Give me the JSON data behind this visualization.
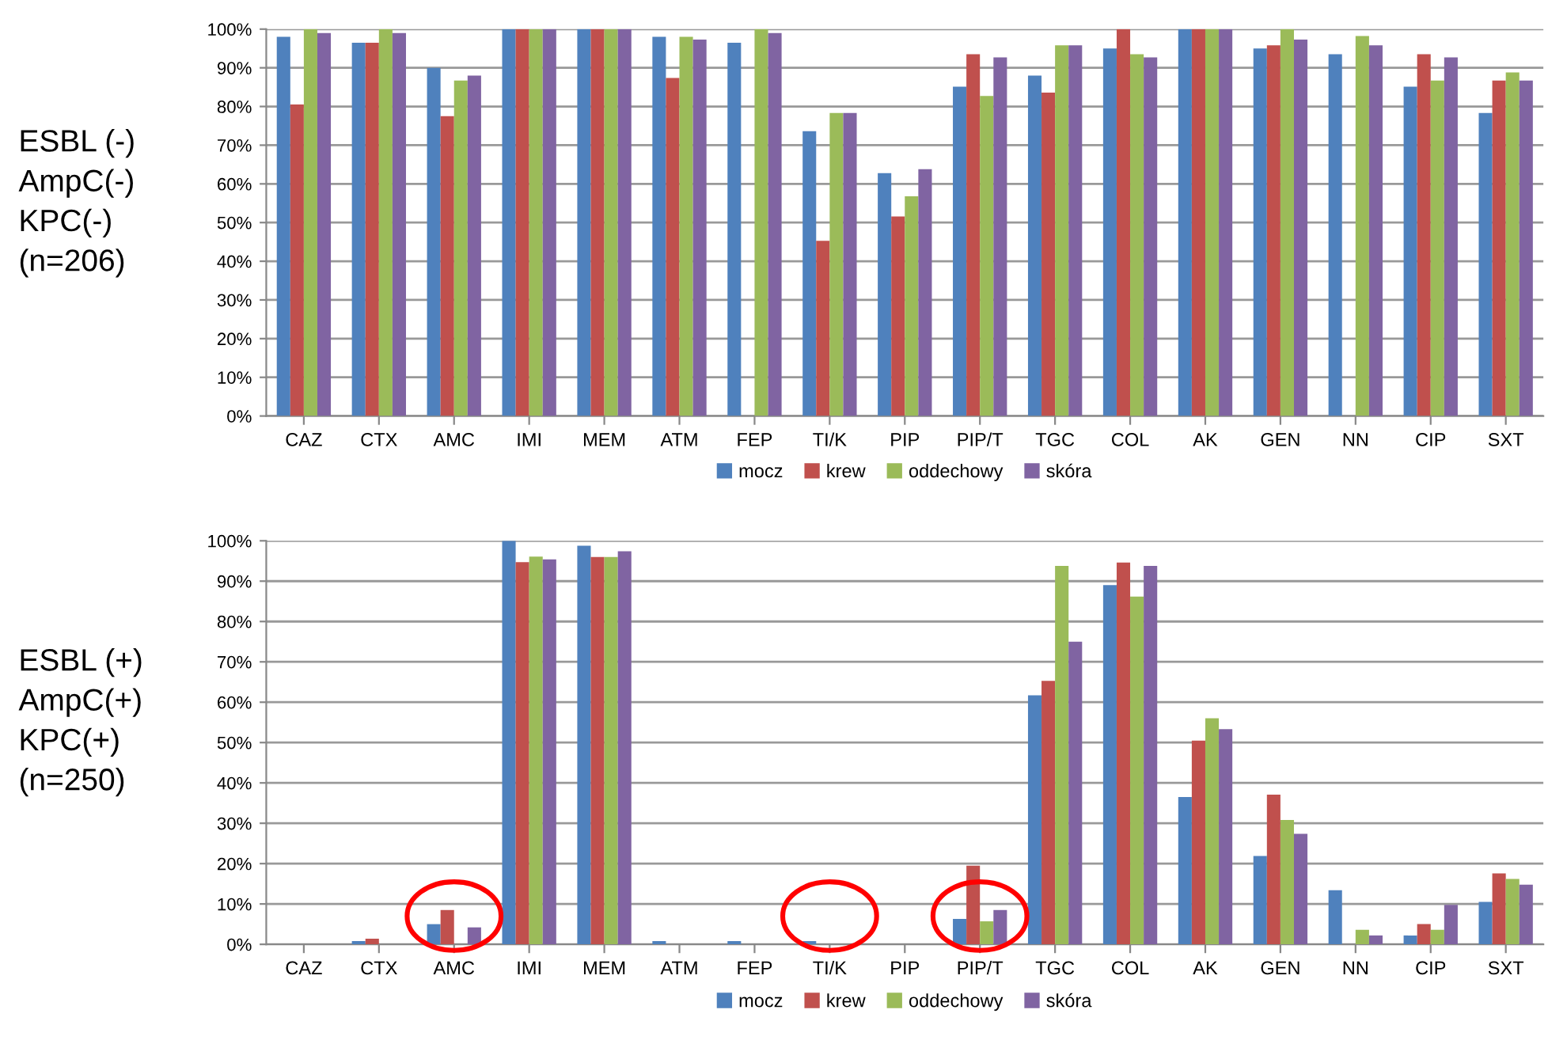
{
  "chart_data": [
    {
      "type": "bar",
      "categories": [
        "CAZ",
        "CTX",
        "AMC",
        "IMI",
        "MEM",
        "ATM",
        "FEP",
        "TI/K",
        "PIP",
        "PIP/T",
        "TGC",
        "COL",
        "AK",
        "GEN",
        "NN",
        "CIP",
        "SXT"
      ],
      "series": [
        {
          "name": "mocz",
          "color": "#4f81bd",
          "values": [
            98,
            96.5,
            90,
            100,
            100,
            98,
            96.5,
            73.6,
            62.8,
            85.1,
            88,
            95,
            100,
            95,
            93.5,
            85.1,
            78.3
          ]
        },
        {
          "name": "krew",
          "color": "#c0504d",
          "values": [
            80.5,
            96.5,
            77.5,
            100,
            100,
            87.4,
            0,
            45.3,
            51.6,
            93.5,
            83.6,
            100,
            100,
            95.8,
            0,
            93.5,
            86.7
          ]
        },
        {
          "name": "oddechowy",
          "color": "#9bbb59",
          "values": [
            100,
            100,
            86.7,
            100,
            100,
            98,
            100,
            78.3,
            56.8,
            82.7,
            95.8,
            93.5,
            100,
            100,
            98.2,
            86.7,
            88.8
          ]
        },
        {
          "name": "skóra",
          "color": "#8064a2",
          "values": [
            99,
            99,
            88,
            100,
            100,
            97.3,
            99,
            78.3,
            63.8,
            92.7,
            95.8,
            92.7,
            100,
            97.3,
            95.8,
            92.7,
            86.7
          ]
        }
      ],
      "ylim": [
        0,
        100
      ],
      "yticks": [
        {
          "value": 0,
          "label": "0%"
        },
        {
          "value": 10,
          "label": "10%"
        },
        {
          "value": 20,
          "label": "20%"
        },
        {
          "value": 30,
          "label": "30%"
        },
        {
          "value": 40,
          "label": "40%"
        },
        {
          "value": 50,
          "label": "50%"
        },
        {
          "value": 60,
          "label": "60%"
        },
        {
          "value": 70,
          "label": "70%"
        },
        {
          "value": 80,
          "label": "80%"
        },
        {
          "value": 90,
          "label": "90%"
        },
        {
          "value": 100,
          "label": "100%"
        }
      ],
      "grid": "y",
      "legend": "bottom",
      "annotations": [
        "ESBL (-)\nAmpC(-)\nKPC(-)\n(n=206)"
      ]
    },
    {
      "type": "bar",
      "categories": [
        "CAZ",
        "CTX",
        "AMC",
        "IMI",
        "MEM",
        "ATM",
        "FEP",
        "TI/K",
        "PIP",
        "PIP/T",
        "TGC",
        "COL",
        "AK",
        "GEN",
        "NN",
        "CIP",
        "SXT"
      ],
      "series": [
        {
          "name": "mocz",
          "color": "#4f81bd",
          "values": [
            0,
            0.8,
            5,
            100,
            98.8,
            0.8,
            0.8,
            0.8,
            0,
            6.3,
            61.7,
            89,
            36.5,
            21.9,
            13.4,
            2.2,
            10.5
          ]
        },
        {
          "name": "krew",
          "color": "#c0504d",
          "values": [
            0,
            1.4,
            8.5,
            94.7,
            96,
            0,
            0,
            0,
            0,
            19.5,
            65.3,
            94.6,
            50.5,
            37.1,
            0,
            5,
            17.6
          ]
        },
        {
          "name": "oddechowy",
          "color": "#9bbb59",
          "values": [
            0,
            0,
            0,
            96.1,
            96,
            0,
            0,
            0,
            0,
            5.7,
            93.8,
            86.2,
            56,
            30.8,
            3.6,
            3.6,
            16.2
          ]
        },
        {
          "name": "skóra",
          "color": "#8064a2",
          "values": [
            0,
            0,
            4.2,
            95.4,
            97.4,
            0,
            0,
            0,
            0,
            8.5,
            75,
            93.8,
            53.3,
            27.4,
            2.2,
            9.8,
            14.8
          ]
        }
      ],
      "ylim": [
        0,
        100
      ],
      "yticks": [
        {
          "value": 0,
          "label": "0%"
        },
        {
          "value": 10,
          "label": "10%"
        },
        {
          "value": 20,
          "label": "20%"
        },
        {
          "value": 30,
          "label": "30%"
        },
        {
          "value": 40,
          "label": "40%"
        },
        {
          "value": 50,
          "label": "50%"
        },
        {
          "value": 60,
          "label": "60%"
        },
        {
          "value": 70,
          "label": "70%"
        },
        {
          "value": 80,
          "label": "80%"
        },
        {
          "value": 90,
          "label": "90%"
        },
        {
          "value": 100,
          "label": "100%"
        }
      ],
      "grid": "y",
      "legend": "bottom",
      "annotations": [
        "ESBL (+)\nAmpC(+)\nKPC(+)\n(n=250)"
      ]
    }
  ]
}
